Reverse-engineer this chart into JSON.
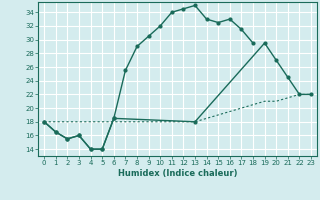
{
  "xlabel": "Humidex (Indice chaleur)",
  "bg_color": "#d4ecee",
  "grid_color": "#ffffff",
  "line_color": "#1a6b5a",
  "xlim": [
    -0.5,
    23.5
  ],
  "ylim": [
    13.0,
    35.5
  ],
  "xticks": [
    0,
    1,
    2,
    3,
    4,
    5,
    6,
    7,
    8,
    9,
    10,
    11,
    12,
    13,
    14,
    15,
    16,
    17,
    18,
    19,
    20,
    21,
    22,
    23
  ],
  "yticks": [
    14,
    16,
    18,
    20,
    22,
    24,
    26,
    28,
    30,
    32,
    34
  ],
  "line1_x": [
    0,
    1,
    2,
    3,
    4,
    5,
    6,
    7,
    8,
    9,
    10,
    11,
    12,
    13,
    14,
    15,
    16,
    17,
    18
  ],
  "line1_y": [
    18,
    16.5,
    15.5,
    16,
    14,
    14,
    18.5,
    25.5,
    29,
    30.5,
    32,
    34,
    34.5,
    35,
    33,
    32.5,
    33,
    31.5,
    29.5
  ],
  "line2_x": [
    0,
    1,
    2,
    3,
    4,
    5,
    6,
    13,
    19,
    20,
    21,
    22,
    23
  ],
  "line2_y": [
    18,
    16.5,
    15.5,
    16,
    14,
    14,
    18.5,
    18,
    29.5,
    27,
    24.5,
    22,
    22
  ],
  "line3_x": [
    0,
    13,
    19,
    20,
    21,
    22,
    23
  ],
  "line3_y": [
    18,
    18,
    21,
    21,
    21.5,
    22,
    22
  ]
}
